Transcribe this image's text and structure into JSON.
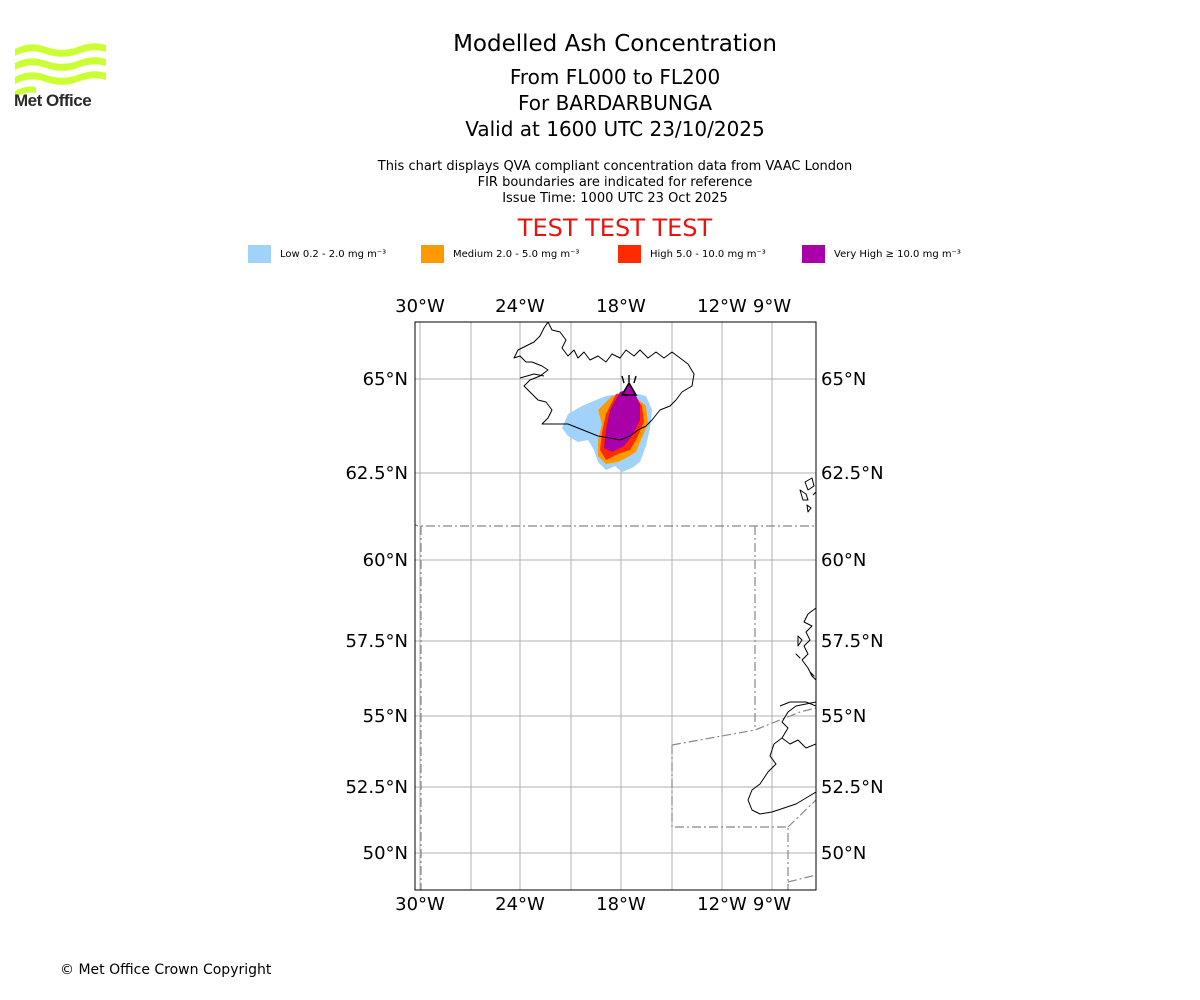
{
  "header": {
    "logo_text": "Met Office",
    "title": "Modelled Ash Concentration",
    "subtitle_levels": "From FL000 to FL200",
    "subtitle_volcano": "For BARDARBUNGA",
    "subtitle_valid": "Valid at 1600 UTC 23/10/2025",
    "desc_line1": "This chart displays QVA compliant concentration data from VAAC London",
    "desc_line2": "FIR boundaries are indicated for reference",
    "desc_line3": "Issue Time: 1000 UTC 23 Oct 2025",
    "test_banner": "TEST TEST TEST"
  },
  "legend": [
    {
      "label": "Low 0.2 - 2.0 mg m⁻³",
      "color": "#a0d2fa"
    },
    {
      "label": "Medium 2.0 - 5.0 mg m⁻³",
      "color": "#ff9900"
    },
    {
      "label": "High 5.0 - 10.0 mg m⁻³",
      "color": "#ff2a00"
    },
    {
      "label": "Very High ≥ 10.0 mg m⁻³",
      "color": "#aa00aa"
    }
  ],
  "map": {
    "lon_labels": [
      "30°W",
      "24°W",
      "18°W",
      "12°W",
      "9°W"
    ],
    "lat_labels": [
      "65°N",
      "62.5°N",
      "60°N",
      "57.5°N",
      "55°N",
      "52.5°N",
      "50°N"
    ],
    "grid_color": "#b0b0b0",
    "coast_color": "#000000",
    "fir_color": "#888888",
    "volcano_symbol": "triangle-icon"
  },
  "footer": {
    "copyright": "© Met Office Crown Copyright"
  }
}
